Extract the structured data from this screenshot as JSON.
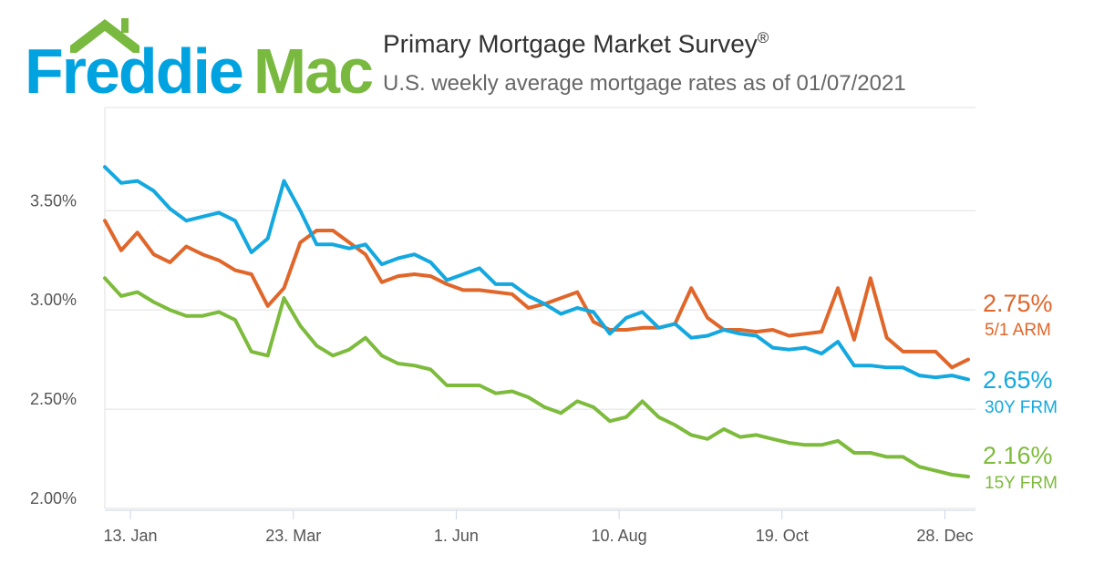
{
  "logo": {
    "part1": "Freddie",
    "part2": "Mac"
  },
  "header": {
    "title": "Primary Mortgage Market Survey",
    "title_mark": "®",
    "subtitle": "U.S. weekly average mortgage rates as of 01/07/2021"
  },
  "colors": {
    "arm": "#e0662a",
    "frm30": "#14a8e0",
    "frm15": "#7dbb3c"
  },
  "chart_data": {
    "type": "line",
    "title": "Primary Mortgage Market Survey",
    "x_start": "2020-01-02",
    "x_step": "weekly",
    "xticks": [
      {
        "label": "13. Jan",
        "week": 1.57
      },
      {
        "label": "23. Mar",
        "week": 11.57
      },
      {
        "label": "1. Jun",
        "week": 21.57
      },
      {
        "label": "10. Aug",
        "week": 31.57
      },
      {
        "label": "19. Oct",
        "week": 41.57
      },
      {
        "label": "28. Dec",
        "week": 51.57
      }
    ],
    "yticks": [
      {
        "v": 2.0,
        "label": "2.00%"
      },
      {
        "v": 2.5,
        "label": "2.50%"
      },
      {
        "v": 3.0,
        "label": "3.00%"
      },
      {
        "v": 3.5,
        "label": "3.50%"
      }
    ],
    "ylim": [
      2.0,
      4.02
    ],
    "grid": true,
    "series": [
      {
        "name": "5/1 ARM",
        "last_label": "2.75%",
        "values": [
          3.45,
          3.3,
          3.39,
          3.28,
          3.24,
          3.32,
          3.28,
          3.25,
          3.2,
          3.18,
          3.02,
          3.11,
          3.34,
          3.4,
          3.4,
          3.34,
          3.28,
          3.14,
          3.17,
          3.18,
          3.17,
          3.13,
          3.1,
          3.1,
          3.09,
          3.08,
          3.01,
          3.03,
          3.06,
          3.09,
          2.94,
          2.9,
          2.9,
          2.91,
          2.91,
          2.93,
          3.11,
          2.96,
          2.9,
          2.9,
          2.89,
          2.9,
          2.87,
          2.88,
          2.89,
          3.11,
          2.85,
          3.16,
          2.86,
          2.79,
          2.79,
          2.79,
          2.71,
          2.75
        ]
      },
      {
        "name": "30Y FRM",
        "last_label": "2.65%",
        "values": [
          3.72,
          3.64,
          3.65,
          3.6,
          3.51,
          3.45,
          3.47,
          3.49,
          3.45,
          3.29,
          3.36,
          3.65,
          3.5,
          3.33,
          3.33,
          3.31,
          3.33,
          3.23,
          3.26,
          3.28,
          3.24,
          3.15,
          3.18,
          3.21,
          3.13,
          3.13,
          3.07,
          3.03,
          2.98,
          3.01,
          2.99,
          2.88,
          2.96,
          2.99,
          2.91,
          2.93,
          2.86,
          2.87,
          2.9,
          2.88,
          2.87,
          2.81,
          2.8,
          2.81,
          2.78,
          2.84,
          2.72,
          2.72,
          2.71,
          2.71,
          2.67,
          2.66,
          2.67,
          2.65
        ]
      },
      {
        "name": "15Y FRM",
        "last_label": "2.16%",
        "values": [
          3.16,
          3.07,
          3.09,
          3.04,
          3.0,
          2.97,
          2.97,
          2.99,
          2.95,
          2.79,
          2.77,
          3.06,
          2.92,
          2.82,
          2.77,
          2.8,
          2.86,
          2.77,
          2.73,
          2.72,
          2.7,
          2.62,
          2.62,
          2.62,
          2.58,
          2.59,
          2.56,
          2.51,
          2.48,
          2.54,
          2.51,
          2.44,
          2.46,
          2.54,
          2.46,
          2.42,
          2.37,
          2.35,
          2.4,
          2.36,
          2.37,
          2.35,
          2.33,
          2.32,
          2.32,
          2.34,
          2.28,
          2.28,
          2.26,
          2.26,
          2.21,
          2.19,
          2.17,
          2.16
        ]
      }
    ]
  }
}
